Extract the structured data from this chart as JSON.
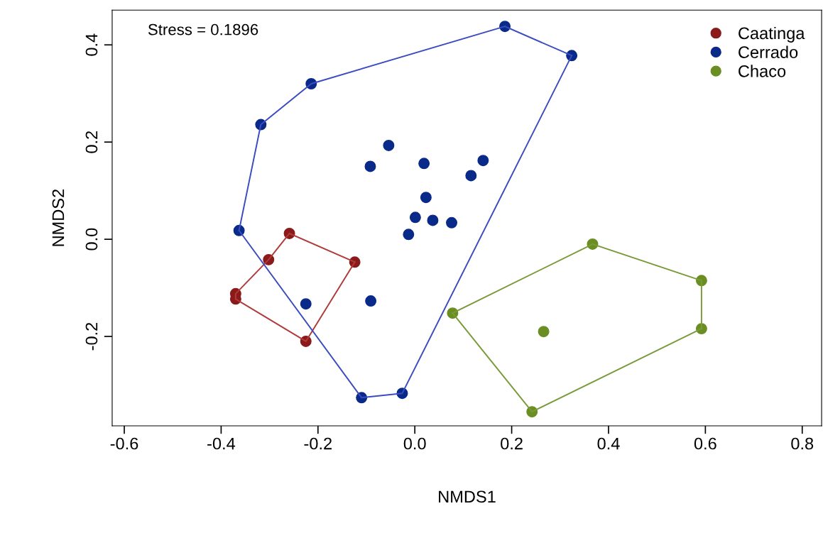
{
  "chart_data": {
    "type": "scatter",
    "xlabel": "NMDS1",
    "ylabel": "NMDS2",
    "annotations": [
      "Stress = 0.1896"
    ],
    "xlim": [
      -0.625,
      0.84
    ],
    "ylim": [
      -0.384,
      0.4715
    ],
    "xticks": [
      -0.6,
      -0.4,
      -0.2,
      {
        "value": 0,
        "label": "0.0"
      },
      0.2,
      0.4,
      0.6,
      0.8
    ],
    "yticks": [
      -0.2,
      {
        "value": 0,
        "label": "0.0"
      },
      0.2,
      0.4
    ],
    "grid": false,
    "legend": "top right",
    "marker": "circle",
    "series": [
      {
        "name": "Caatinga",
        "color": "#8b1a1a",
        "x": [
          -0.37,
          -0.37,
          -0.302,
          -0.259,
          -0.124,
          -0.225
        ],
        "values": [
          -0.112,
          -0.123,
          -0.042,
          0.012,
          -0.047,
          -0.21
        ]
      },
      {
        "name": "Cerrado",
        "color": "#0a2a8a",
        "x": [
          0.186,
          0.324,
          -0.214,
          -0.318,
          -0.363,
          -0.11,
          -0.026,
          -0.054,
          -0.092,
          0.019,
          0.141,
          0.116,
          0.023,
          0.001,
          0.037,
          0.076,
          -0.013,
          -0.225,
          -0.091
        ],
        "values": [
          0.438,
          0.378,
          0.32,
          0.236,
          0.018,
          -0.326,
          -0.317,
          0.193,
          0.15,
          0.156,
          0.162,
          0.131,
          0.086,
          0.045,
          0.039,
          0.034,
          0.01,
          -0.133,
          -0.127
        ]
      },
      {
        "name": "Chaco",
        "color": "#6b8e23",
        "x": [
          0.367,
          0.592,
          0.592,
          0.242,
          0.078,
          0.266
        ],
        "values": [
          -0.01,
          -0.085,
          -0.184,
          -0.355,
          -0.152,
          -0.19
        ]
      },
      {
        "type": "line",
        "marker": "none",
        "color": "#b03a3a",
        "x": [
          -0.259,
          -0.124
        ],
        "values": [
          0.012,
          -0.047
        ]
      },
      {
        "type": "line",
        "marker": "none",
        "color": "#b03a3a",
        "x": [
          -0.37,
          -0.225,
          -0.124
        ],
        "values": [
          -0.123,
          -0.21,
          -0.047
        ]
      },
      {
        "type": "line",
        "marker": "none",
        "color": "#b03a3a",
        "x": [
          -0.37,
          -0.37,
          -0.302,
          -0.259
        ],
        "values": [
          -0.123,
          -0.112,
          -0.042,
          0.012
        ]
      },
      {
        "type": "line",
        "marker": "none",
        "color": "#3a4cc0",
        "x": [
          0.186,
          0.324
        ],
        "values": [
          0.438,
          0.378
        ]
      },
      {
        "type": "line",
        "marker": "none",
        "color": "#3a4cc0",
        "x": [
          -0.363,
          -0.11,
          -0.026,
          0.324
        ],
        "values": [
          0.018,
          -0.326,
          -0.317,
          0.378
        ]
      },
      {
        "type": "line",
        "marker": "none",
        "color": "#3a4cc0",
        "x": [
          -0.363,
          -0.318,
          -0.214,
          0.186
        ],
        "values": [
          0.018,
          0.236,
          0.32,
          0.438
        ]
      },
      {
        "type": "line",
        "marker": "none",
        "color": "#7a9a3a",
        "x": [
          0.367,
          0.592,
          0.592
        ],
        "values": [
          -0.01,
          -0.085,
          -0.184
        ]
      },
      {
        "type": "line",
        "marker": "none",
        "color": "#7a9a3a",
        "x": [
          0.078,
          0.242,
          0.592
        ],
        "values": [
          -0.152,
          -0.355,
          -0.184
        ]
      },
      {
        "type": "line",
        "marker": "none",
        "color": "#7a9a3a",
        "x": [
          0.078,
          0.367
        ],
        "values": [
          -0.152,
          -0.01
        ]
      }
    ]
  }
}
